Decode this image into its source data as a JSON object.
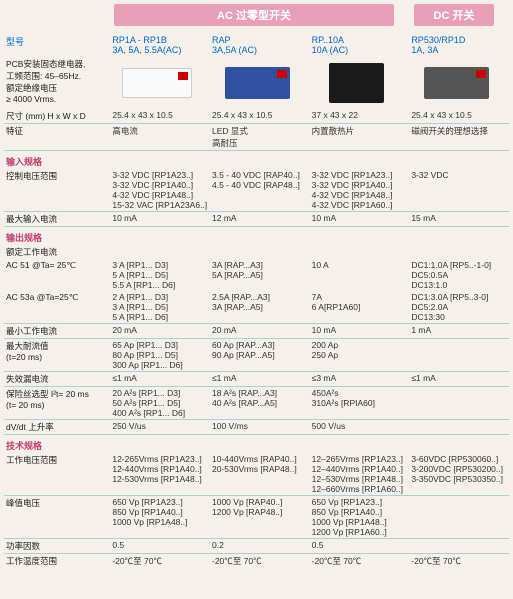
{
  "tabs": {
    "ac": "AC 过零型开关",
    "dc": "DC 开关"
  },
  "model_label": "型号",
  "models": {
    "c1": {
      "name": "RP1A - RP1B",
      "spec": "3A, 5A, 5.5A(AC)"
    },
    "c2": {
      "name": "RAP",
      "spec": "3A,5A (AC)"
    },
    "c3": {
      "name": "RP..10A",
      "spec": "10A (AC)"
    },
    "c4": {
      "name": "RP530/RP1D",
      "spec": "1A, 3A"
    }
  },
  "pcb_desc": {
    "l1": "PCB安装固态继电器,",
    "l2": "工频范围: 45–65Hz.",
    "l3": "额定绝缘电压",
    "l4": "≥ 4000 Vrms."
  },
  "rows": {
    "dims_label": "尺寸 (mm) H x W x D",
    "dims": {
      "c1": "25.4 x 43 x 10.5",
      "c2": "25.4 x 43 x 10.5",
      "c3": "37 x 43 x 22",
      "c4": "25.4 x 43 x 10.5"
    },
    "feature_label": "特征",
    "feature": {
      "c1": "高电流",
      "c2": "LED 显式\n高耐压",
      "c3": "内置散热片",
      "c4": "磁阀开关的理想选择"
    },
    "input_spec": "输入规格",
    "ctrl_v_label": "控制电压范围",
    "ctrl_v": {
      "c1": "3-32 VDC [RP1A23..]\n3-32 VDC [RP1A40..]\n4-32 VDC [RP1A48..]\n15-32 VAC [RP1A23A6..]",
      "c2": "3.5 - 40 VDC [RAP40..]\n4.5 - 40 VDC [RAP48..]",
      "c3": "3-32 VDC [RP1A23..]\n3-32 VDC [RP1A40..]\n4-32 VDC [RP1A48..]\n4-32 VDC [RP1A60..]",
      "c4": "3-32 VDC"
    },
    "max_input_label": "最大输入电流",
    "max_input": {
      "c1": "10 mA",
      "c2": "12 mA",
      "c3": "10 mA",
      "c4": "15 mA"
    },
    "output_spec": "输出规格",
    "rated_label": "额定工作电流",
    "ac51_label": "AC 51    @Ta= 25℃",
    "ac51": {
      "c1": "3 A       [RP1... D3]\n5 A       [RP1... D5]\n5.5 A    [RP1... D6]",
      "c2": "3A       [RAP...A3]\n5A       [RAP...A5]",
      "c3": "10 A",
      "c4": "DC1:1.0A   [RP5..-1-0]\nDC5:0.5A\nDC13:1.0"
    },
    "ac53a_label": "AC 53a @Ta=25℃",
    "ac53a": {
      "c1": "2 A       [RP1... D3]\n3 A       [RP1... D5]\n5 A       [RP1... D6]",
      "c2": "2.5A    [RAP...A3]\n3A       [RAP...A5]",
      "c3": "7A\n6 A[RP1A60]",
      "c4": "DC1:3.0A   [RP5..3-0]\nDC5:2.0A\nDC13:30"
    },
    "min_current_label": "最小工作电流",
    "min_current": {
      "c1": "20 mA",
      "c2": "20 mA",
      "c3": "10 mA",
      "c4": "1 mA"
    },
    "max_surge_label": "最大耐流值\n(t=20 ms)",
    "max_surge": {
      "c1": "65 Ap    [RP1... D3]\n80 Ap    [RP1... D5]\n300 Ap  [RP1... D6]",
      "c2": "60 Ap    [RAP...A3]\n90 Ap    [RAP...A5]",
      "c3": "200 Ap\n250 Ap",
      "c4": ""
    },
    "leak_label": "失效漏电流",
    "leak": {
      "c1": "≤1 mA",
      "c2": "≤1 mA",
      "c3": "≤3 mA",
      "c4": "≤1 mA"
    },
    "fuse_label": "保险丝选型 I²t= 20 ms\n(t= 20 ms)",
    "fuse": {
      "c1": "20 A²s   [RP1... D3]\n50 A²s   [RP1... D5]\n400 A²s [RP1... D6]",
      "c2": "18 A²s   [RAP...A3]\n40 A²s   [RAP...A5]",
      "c3": "450A²s\n310A²s  [RPIA60]",
      "c4": ""
    },
    "dvdt_label": "dV/dt 上升率",
    "dvdt": {
      "c1": "250 V/us",
      "c2": "100 V/ms",
      "c3": "500 V/us",
      "c4": ""
    },
    "tech_spec": "技术规格",
    "work_v_label": "工作电压范围",
    "work_v": {
      "c1": "12-265Vrms [RP1A23..]\n12-440Vrms [RP1A40..]\n12-530Vrms [RP1A48..]",
      "c2": "10-440Vrms [RAP40..]\n20-530Vrms [RAP48..]",
      "c3": "12–265Vrms [RP1A23..]\n12–440Vrms [RP1A40..]\n12–530Vrms [RP1A48..]\n12–660Vrms [RP1A60..]",
      "c4": "3-60VDC   [RP530060..]\n3-200VDC [RP530200..]\n3-350VDC [RP530350..]"
    },
    "peak_v_label": "峰值电压",
    "peak_v": {
      "c1": "650 Vp   [RP1A23..]\n850 Vp   [RP1A40..]\n1000 Vp [RP1A48..]",
      "c2": "1000 Vp  [RAP40..]\n1200 Vp  [RAP48..]",
      "c3": "650 Vp   [RP1A23..]\n850 Vp   [RP1A40..]\n1000 Vp [RP1A48..]\n1200 Vp [RP1A60..]",
      "c4": ""
    },
    "pf_label": "功率因数",
    "pf": {
      "c1": "0.5",
      "c2": "0.2",
      "c3": "0.5",
      "c4": ""
    },
    "temp_label": "工作温度范围",
    "temp": {
      "c1": "-20℃至 70℃",
      "c2": "-20℃至 70℃",
      "c3": "-20℃至 70℃",
      "c4": "-20℃至 70℃"
    }
  }
}
